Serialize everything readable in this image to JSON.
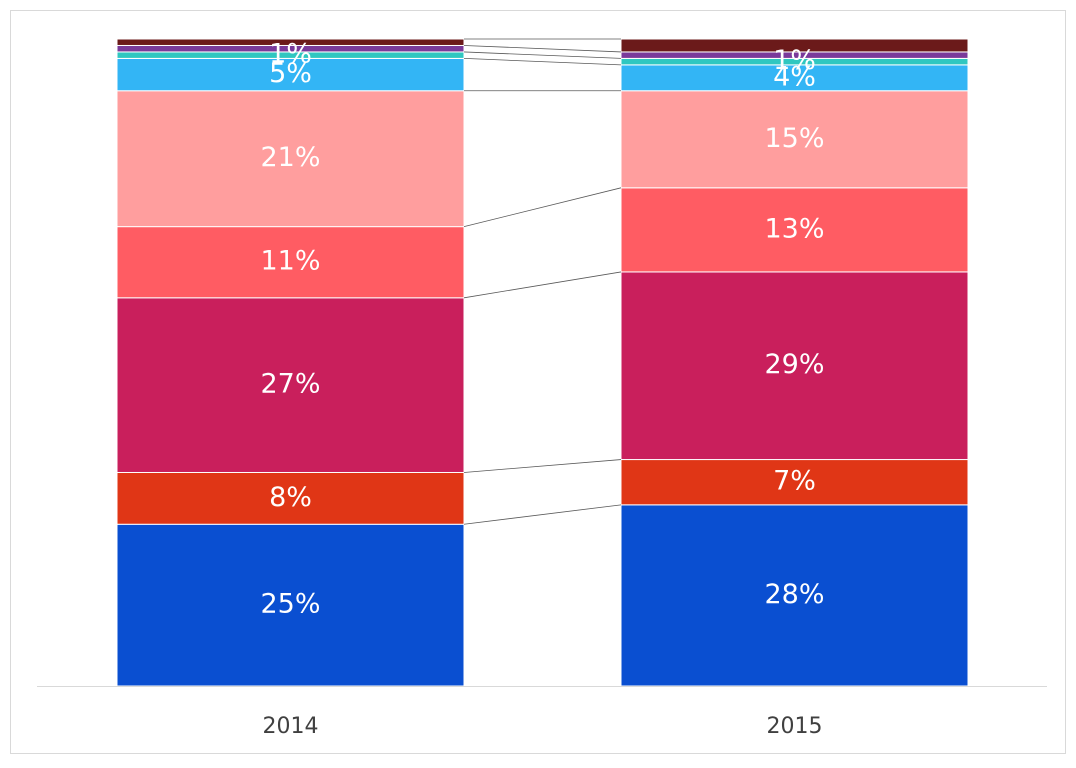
{
  "chart_data": {
    "type": "stacked_bar_100",
    "categories": [
      "2014",
      "2015"
    ],
    "ylim": [
      0,
      100
    ],
    "series_lines": true,
    "series": [
      {
        "color": "#0a4fd1",
        "values": [
          25,
          28
        ],
        "value_labels": [
          "25%",
          "28%"
        ]
      },
      {
        "color": "#e03616",
        "values": [
          8,
          7
        ],
        "value_labels": [
          "8%",
          "7%"
        ]
      },
      {
        "color": "#c91f5c",
        "values": [
          27,
          29
        ],
        "value_labels": [
          "27%",
          "29%"
        ]
      },
      {
        "color": "#ff5c63",
        "values": [
          11,
          13
        ],
        "value_labels": [
          "11%",
          "13%"
        ]
      },
      {
        "color": "#ff9e9e",
        "values": [
          21,
          15
        ],
        "value_labels": [
          "21%",
          "15%"
        ]
      },
      {
        "color": "#33b5f5",
        "values": [
          5,
          4
        ],
        "value_labels": [
          "5%",
          "4%"
        ]
      },
      {
        "color": "#30c7c0",
        "values": [
          1,
          1
        ],
        "value_labels": [
          "1%",
          "1%"
        ]
      },
      {
        "color": "#7a3a9a",
        "values": [
          1,
          1
        ],
        "value_labels": [
          null,
          null
        ]
      },
      {
        "color": "#6b1a1a",
        "values": [
          1,
          2
        ],
        "value_labels": [
          null,
          null
        ]
      }
    ]
  }
}
